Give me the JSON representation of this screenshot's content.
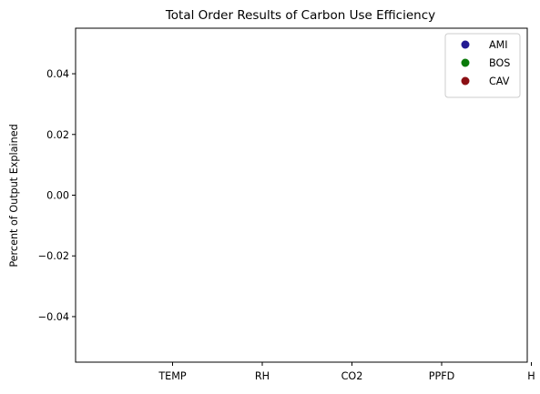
{
  "chart_data": {
    "type": "scatter",
    "title": "Total Order Results of Carbon Use Efficiency",
    "xlabel": "",
    "ylabel": "Percent of Output Explained",
    "categories": [
      "TEMP",
      "RH",
      "CO2",
      "PPFD",
      "H"
    ],
    "ylim": [
      -0.055,
      0.055
    ],
    "yticks": [
      0.04,
      0.02,
      0.0,
      -0.02,
      -0.04
    ],
    "ytick_labels": [
      "0.04",
      "0.02",
      "0.00",
      "−0.02",
      "−0.04"
    ],
    "series": [
      {
        "name": "AMI",
        "color": "#231a92",
        "values": []
      },
      {
        "name": "BOS",
        "color": "#0a7a0a",
        "values": []
      },
      {
        "name": "CAV",
        "color": "#8b0f14",
        "values": []
      }
    ],
    "legend": "top-right",
    "grid": false
  }
}
